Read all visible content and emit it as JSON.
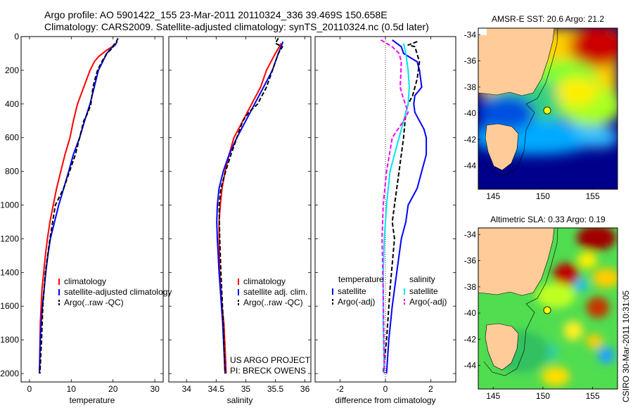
{
  "header": {
    "line1": "Argo profile: AO 5901422_155 23-Mar-2011 20110324_336 39.469S 150.658E",
    "line2": "Climatology: CARS2009. Satellite-adjusted climatology: synTS_20110324.nc (0.5d later)"
  },
  "credit": {
    "project": "US ARGO PROJECT",
    "pi": "PI: BRECK OWENS",
    "stamp": "CSIRO 30-Mar-2011 10:31:05"
  },
  "colors": {
    "climatology": "#ff0000",
    "satellite": "#0000ff",
    "argo": "#000000",
    "sal_satellite": "#00e5ee",
    "sal_argo": "#ff00ff",
    "land": "#ffcc99",
    "float_marker": "#ffff00"
  },
  "chart_data": [
    {
      "type": "line",
      "id": "temperature",
      "xlabel": "temperature",
      "ylabel": "",
      "xlim": [
        -2,
        32
      ],
      "ylim": [
        2050,
        0
      ],
      "xticks": [
        0,
        10,
        20,
        30
      ],
      "yticks": [
        0,
        200,
        400,
        600,
        800,
        1000,
        1200,
        1400,
        1600,
        1800,
        2000
      ],
      "legend_position": "lower-right",
      "series": [
        {
          "name": "climatology",
          "style": "solid",
          "color": "#ff0000",
          "x": [
            20.5,
            19.8,
            18.5,
            16.5,
            15.5,
            14.5,
            13.0,
            11.5,
            10.5,
            9.7,
            8.5,
            7.5,
            6.5,
            5.7,
            4.9,
            4.3,
            3.8,
            3.4,
            3.0,
            2.8,
            2.6,
            2.5,
            2.4
          ],
          "y": [
            40,
            60,
            80,
            120,
            150,
            200,
            300,
            400,
            500,
            600,
            700,
            800,
            900,
            1000,
            1100,
            1200,
            1300,
            1400,
            1500,
            1600,
            1700,
            1850,
            2000
          ]
        },
        {
          "name": "satellite-adjusted climatology",
          "style": "solid",
          "color": "#0000ff",
          "x": [
            21.0,
            20.5,
            19.5,
            18.5,
            17.5,
            16.5,
            15.5,
            14.5,
            13.2,
            12.0,
            10.5,
            9.4,
            8.2,
            7.0,
            6.0,
            5.0,
            4.4,
            3.9,
            3.5,
            3.1,
            2.8,
            2.6,
            2.5,
            2.4
          ],
          "y": [
            30,
            50,
            70,
            100,
            150,
            200,
            300,
            400,
            500,
            600,
            700,
            800,
            900,
            1000,
            1100,
            1200,
            1300,
            1400,
            1500,
            1600,
            1700,
            1800,
            1900,
            2000
          ]
        },
        {
          "name": "Argo(..raw -QC)",
          "style": "dashed",
          "color": "#000000",
          "x": [
            21.2,
            20.8,
            20.2,
            19.8,
            18.5,
            17.3,
            16.3,
            15.7,
            15.2,
            14.7,
            14.0,
            13.0,
            12.0,
            11.0,
            9.6,
            8.2,
            6.2,
            4.9,
            3.8,
            3.2,
            2.9,
            2.5
          ],
          "y": [
            10,
            30,
            50,
            70,
            100,
            150,
            200,
            250,
            300,
            400,
            450,
            500,
            600,
            700,
            800,
            900,
            1000,
            1200,
            1400,
            1600,
            1800,
            2000
          ]
        }
      ]
    },
    {
      "type": "line",
      "id": "salinity",
      "xlabel": "salinity",
      "ylabel": "",
      "xlim": [
        33.7,
        36.1
      ],
      "ylim": [
        2050,
        0
      ],
      "xticks": [
        34,
        34.5,
        35,
        35.5,
        36
      ],
      "legend_position": "lower-right",
      "series": [
        {
          "name": "climatology",
          "style": "solid",
          "color": "#ff0000",
          "x": [
            35.6,
            35.5,
            35.35,
            35.25,
            35.1,
            34.95,
            34.8,
            34.72,
            34.65,
            34.6,
            34.57,
            34.55,
            34.55,
            34.56,
            34.58,
            34.6,
            34.63,
            34.65,
            34.67
          ],
          "y": [
            40,
            100,
            200,
            300,
            400,
            500,
            600,
            700,
            800,
            900,
            1000,
            1100,
            1200,
            1400,
            1500,
            1600,
            1700,
            1850,
            2000
          ]
        },
        {
          "name": "satellite adj. clim.",
          "style": "solid",
          "color": "#0000ff",
          "x": [
            35.63,
            35.55,
            35.45,
            35.3,
            35.15,
            35.0,
            34.85,
            34.72,
            34.62,
            34.55,
            34.52,
            34.51,
            34.52,
            34.55,
            34.57,
            34.59,
            34.61,
            34.63,
            34.65
          ],
          "y": [
            30,
            100,
            200,
            300,
            400,
            500,
            600,
            700,
            800,
            900,
            1000,
            1100,
            1200,
            1400,
            1500,
            1600,
            1700,
            1850,
            2000
          ]
        },
        {
          "name": "Argo(..raw -QC)",
          "style": "dashed",
          "color": "#000000",
          "x": [
            35.55,
            35.5,
            35.62,
            35.55,
            35.45,
            35.35,
            35.2,
            35.05,
            34.95,
            34.85,
            34.75,
            34.66,
            34.58,
            34.55,
            34.56,
            34.58,
            34.62,
            34.65
          ],
          "y": [
            10,
            40,
            60,
            100,
            200,
            300,
            400,
            450,
            500,
            600,
            700,
            800,
            900,
            1000,
            1200,
            1400,
            1700,
            2000
          ]
        }
      ]
    },
    {
      "type": "line",
      "id": "difference",
      "xlabel": "difference from climatology",
      "ylabel": "",
      "xlim": [
        -3.1,
        3.1
      ],
      "ylim": [
        2050,
        0
      ],
      "xticks": [
        -2,
        0,
        2
      ],
      "zero_line": true,
      "legend_position": "lower-center",
      "legend_groups": {
        "temperature": "temperature",
        "salinity": "salinity"
      },
      "series": [
        {
          "name": "satellite",
          "group": "temperature",
          "style": "solid",
          "color": "#0000ff",
          "x": [
            0.3,
            0.7,
            0.8,
            1.4,
            1.5,
            1.6,
            1.3,
            1.25,
            1.3,
            1.5,
            1.7,
            1.8,
            1.8,
            1.6,
            1.4,
            1.0,
            0.9,
            0.7,
            0.5,
            0.3,
            0.15,
            0.05
          ],
          "y": [
            20,
            60,
            100,
            150,
            200,
            300,
            350,
            400,
            450,
            500,
            550,
            600,
            700,
            800,
            900,
            1000,
            1100,
            1200,
            1400,
            1600,
            1800,
            2000
          ]
        },
        {
          "name": "Argo(-adj)",
          "group": "temperature",
          "style": "dashed",
          "color": "#000000",
          "x": [
            1.4,
            1.0,
            1.3,
            1.5,
            1.4,
            1.2,
            1.0,
            0.9,
            0.8,
            0.6,
            0.4,
            0.3,
            0.4,
            0.2,
            0.05,
            -0.1
          ],
          "y": [
            30,
            50,
            60,
            150,
            250,
            350,
            400,
            450,
            600,
            800,
            1000,
            1100,
            1200,
            1500,
            1800,
            2000
          ]
        },
        {
          "name": "satellite",
          "group": "salinity",
          "style": "solid",
          "color": "#00e5ee",
          "x": [
            0.8,
            0.9,
            1.0,
            1.05,
            1.0,
            0.8,
            0.6,
            0.4,
            0.2,
            0.05,
            -0.05,
            -0.1,
            -0.1,
            -0.05
          ],
          "y": [
            40,
            100,
            200,
            300,
            400,
            500,
            600,
            700,
            800,
            1000,
            1200,
            1400,
            1700,
            2000
          ]
        },
        {
          "name": "Argo(-adj)",
          "group": "salinity",
          "style": "dashed",
          "color": "#ff00ff",
          "x": [
            -0.2,
            0.3,
            0.6,
            0.7,
            0.65,
            0.75,
            1.0,
            0.8,
            0.3,
            0.05,
            -0.1,
            -0.15,
            -0.1,
            -0.05
          ],
          "y": [
            20,
            60,
            100,
            150,
            300,
            350,
            450,
            500,
            600,
            800,
            1000,
            1200,
            1500,
            2000
          ]
        }
      ]
    },
    {
      "type": "heatmap",
      "id": "sst_map",
      "title": "AMSR-E SST: 20.6  Argo: 21.2",
      "xticks": [
        145,
        150,
        155
      ],
      "yticks": [
        -34,
        -36,
        -38,
        -40,
        -42,
        -44
      ],
      "xlim": [
        143.5,
        157.5
      ],
      "ylim": [
        -45.8,
        -33.5
      ],
      "float_position": [
        150.658,
        -39.469
      ]
    },
    {
      "type": "heatmap",
      "id": "sla_map",
      "title": "Altimetric SLA: 0.33  Argo: 0.19",
      "xticks": [
        145,
        150,
        155
      ],
      "yticks": [
        -34,
        -36,
        -38,
        -40,
        -42,
        -44
      ],
      "xlim": [
        143.5,
        157.5
      ],
      "ylim": [
        -45.8,
        -33.5
      ],
      "float_position": [
        150.658,
        -39.469
      ]
    }
  ]
}
